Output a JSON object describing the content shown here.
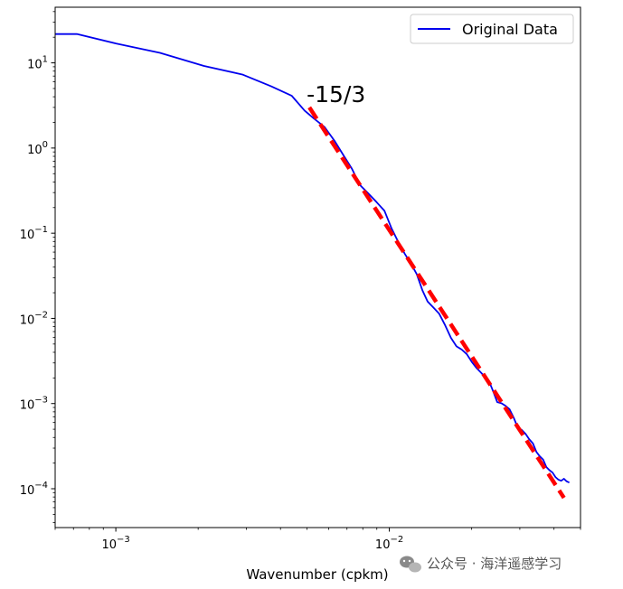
{
  "chart_data": {
    "type": "line",
    "title": "",
    "xlabel": "Wavenumber (cpkm)",
    "ylabel": "",
    "xscale": "log",
    "yscale": "log",
    "xlim": [
      0.0006,
      0.05
    ],
    "ylim": [
      3.5e-05,
      45
    ],
    "x_ticks": [
      {
        "value": 0.001,
        "base": "10",
        "exp": "−3"
      },
      {
        "value": 0.01,
        "base": "10",
        "exp": "−2"
      }
    ],
    "y_ticks": [
      {
        "value": 10,
        "base": "10",
        "exp": "1"
      },
      {
        "value": 1,
        "base": "10",
        "exp": "0"
      },
      {
        "value": 0.1,
        "base": "10",
        "exp": "−1"
      },
      {
        "value": 0.01,
        "base": "10",
        "exp": "−2"
      },
      {
        "value": 0.001,
        "base": "10",
        "exp": "−3"
      },
      {
        "value": 0.0001,
        "base": "10",
        "exp": "−4"
      }
    ],
    "legend": {
      "placement": "top-right",
      "entries": [
        "Original Data"
      ]
    },
    "series": [
      {
        "name": "Original Data",
        "color": "#0000ee",
        "style": "solid",
        "x": [
          0.0006,
          0.00072,
          0.001,
          0.00145,
          0.0021,
          0.0029,
          0.0037,
          0.0044,
          0.0049,
          0.0053,
          0.0058,
          0.0063,
          0.0068,
          0.0073,
          0.0078,
          0.0084,
          0.009,
          0.0096,
          0.0102,
          0.0108,
          0.0114,
          0.012,
          0.0126,
          0.0132,
          0.0138,
          0.0145,
          0.0152,
          0.016,
          0.0168,
          0.0176,
          0.0184,
          0.0192,
          0.02,
          0.0208,
          0.0216,
          0.0224,
          0.0232,
          0.024,
          0.0248,
          0.0257,
          0.0266,
          0.0275,
          0.0285,
          0.0295,
          0.0305,
          0.0315,
          0.0325,
          0.0335,
          0.0345,
          0.0355,
          0.0365,
          0.0375,
          0.0385,
          0.0395,
          0.0405,
          0.0415,
          0.0425,
          0.0435,
          0.0445,
          0.0455
        ],
        "y": [
          21.8,
          21.8,
          16.9,
          13.1,
          9.2,
          7.3,
          5.3,
          4.1,
          2.75,
          2.22,
          1.76,
          1.22,
          0.82,
          0.57,
          0.37,
          0.29,
          0.23,
          0.183,
          0.113,
          0.078,
          0.057,
          0.044,
          0.033,
          0.0215,
          0.0158,
          0.0134,
          0.0114,
          0.0083,
          0.0059,
          0.0047,
          0.0043,
          0.0038,
          0.0031,
          0.00263,
          0.00232,
          0.00205,
          0.0018,
          0.00138,
          0.00104,
          0.00101,
          0.00094,
          0.00086,
          0.00068,
          0.00052,
          0.00049,
          0.00044,
          0.00038,
          0.00034,
          0.00027,
          0.00024,
          0.00022,
          0.00018,
          0.000165,
          0.000155,
          0.000137,
          0.000128,
          0.000124,
          0.000131,
          0.000122,
          0.000118
        ]
      },
      {
        "name": "",
        "color": "#ff0000",
        "style": "dashed",
        "x": [
          0.0051,
          0.0435
        ],
        "y": [
          3.0,
          7.82e-05
        ]
      }
    ],
    "annotations": [
      {
        "text": "-15/3",
        "x": 0.0051,
        "y": 3.0
      }
    ]
  },
  "watermark": {
    "text": "公众号 · 海洋遥感学习"
  }
}
